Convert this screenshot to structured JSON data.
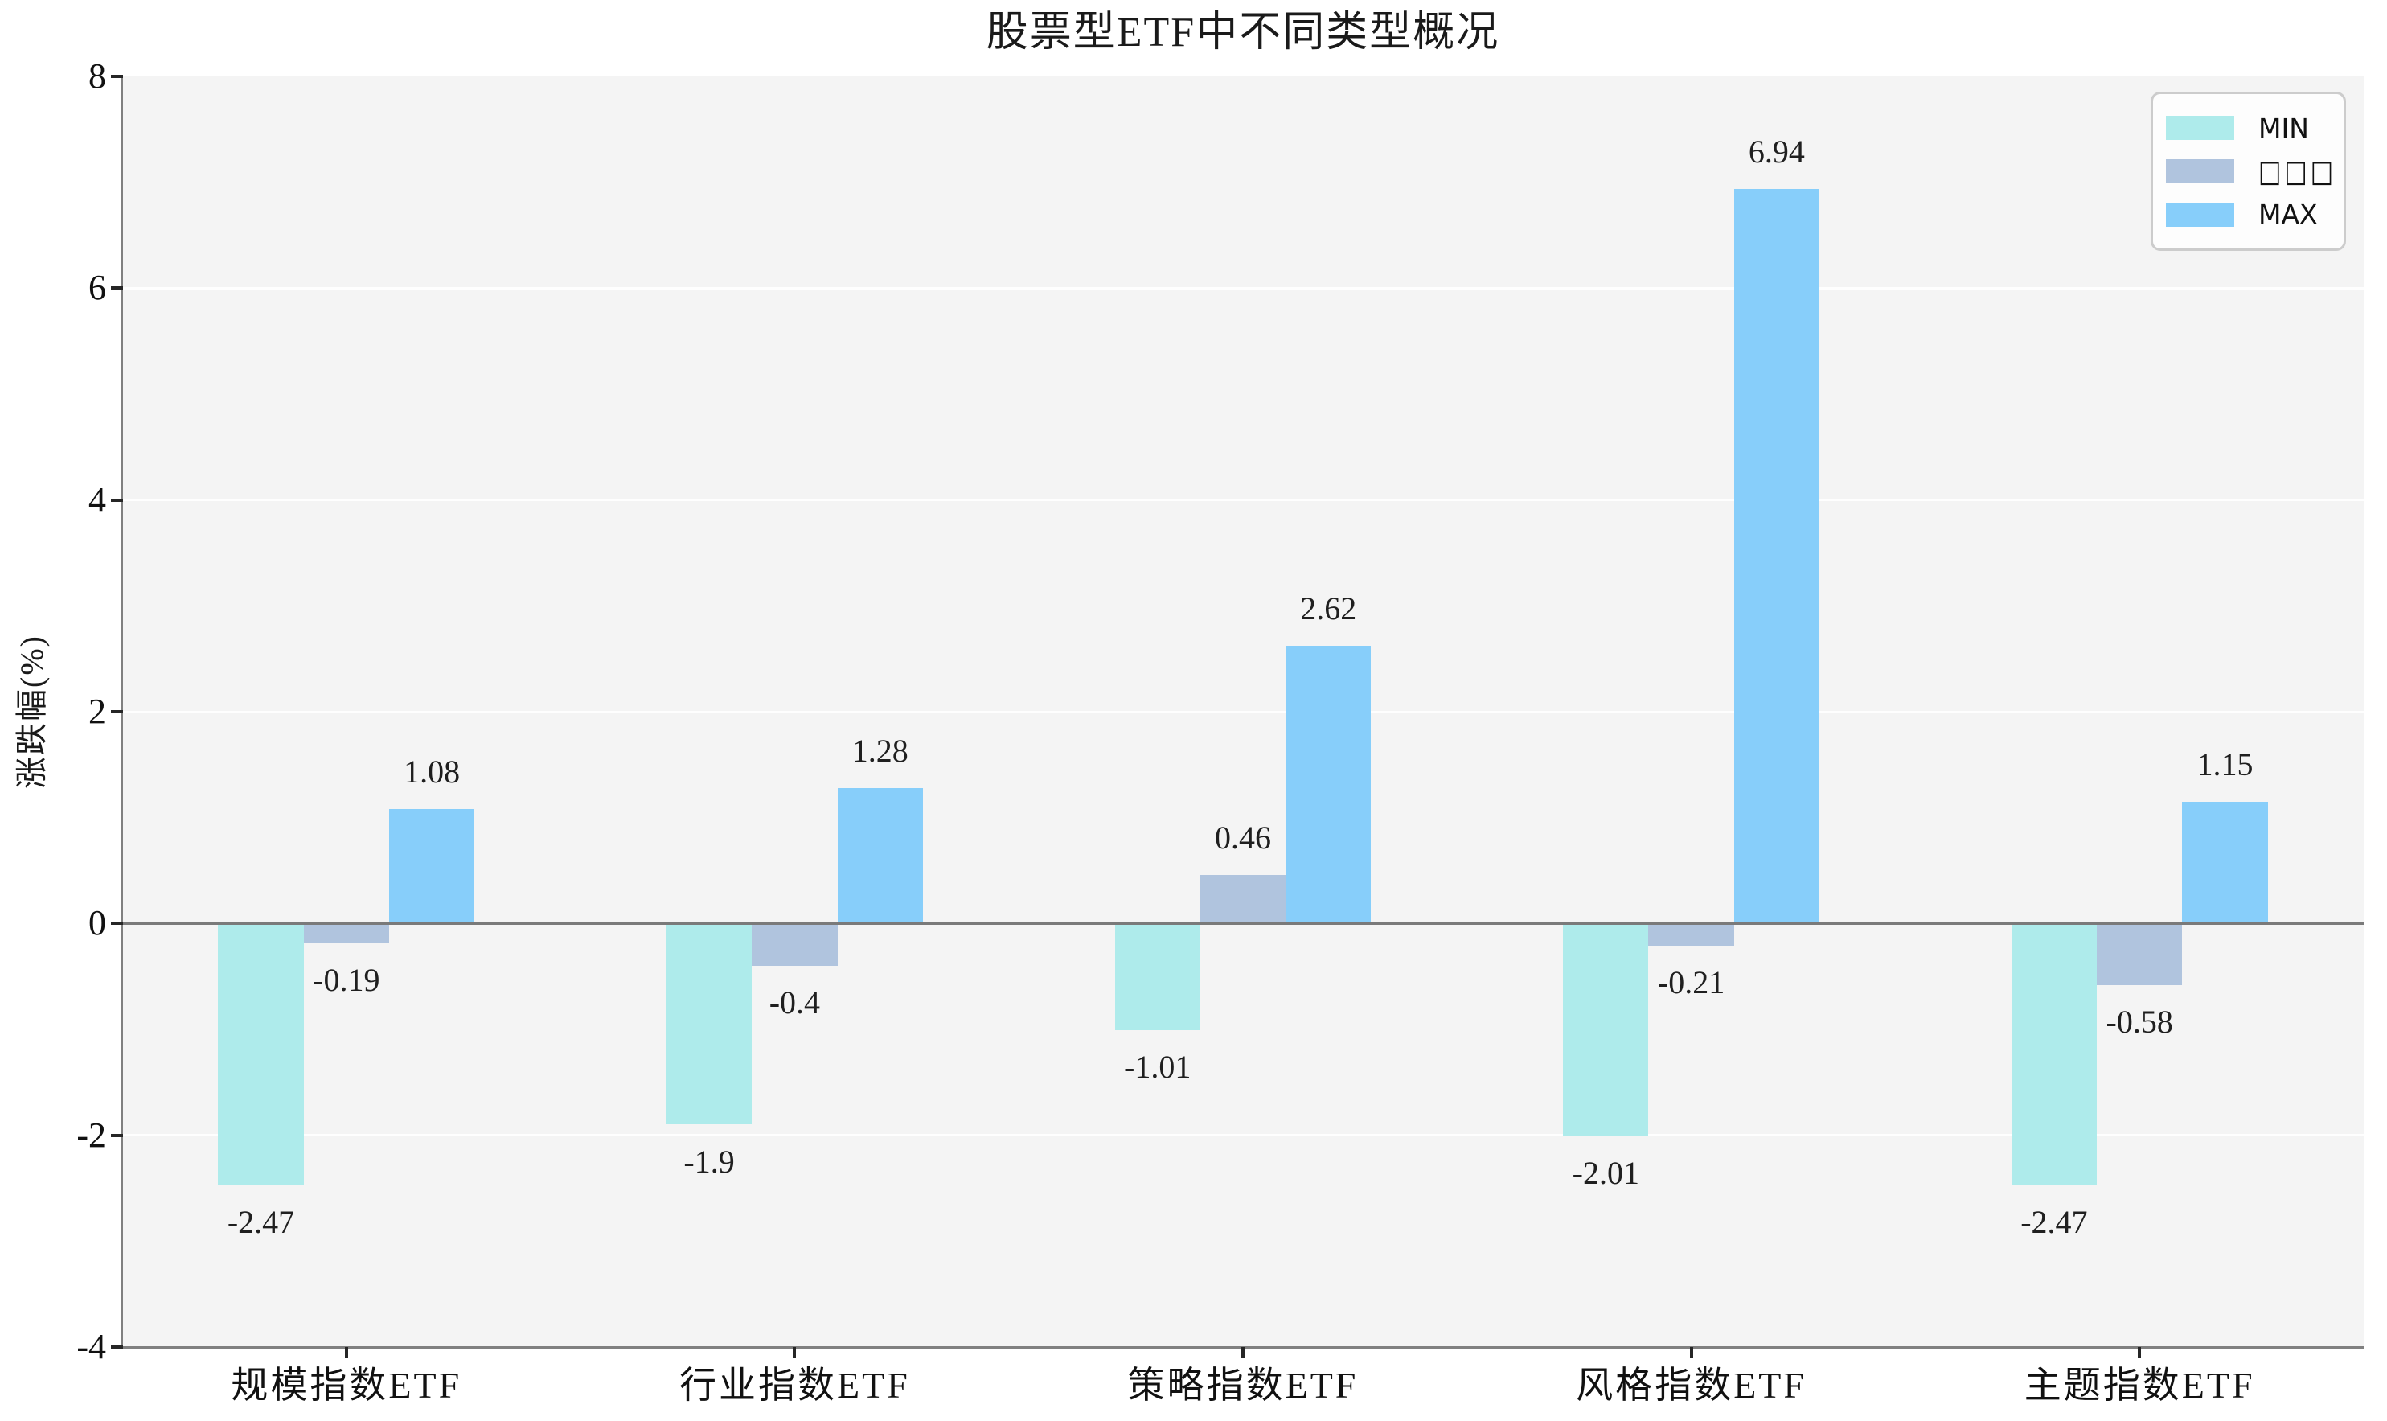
{
  "chart_data": {
    "type": "bar",
    "title": "股票型ETF中不同类型概况",
    "ylabel": "涨跌幅(%)",
    "xlabel": "",
    "categories": [
      "规模指数ETF",
      "行业指数ETF",
      "策略指数ETF",
      "风格指数ETF",
      "主题指数ETF"
    ],
    "series": [
      {
        "name": "MIN",
        "color": "#aeebeb",
        "values": [
          -2.47,
          -1.9,
          -1.01,
          -2.01,
          -2.47
        ],
        "labels": [
          "-2.47",
          "-1.9",
          "-1.01",
          "-2.01",
          "-2.47"
        ]
      },
      {
        "name": "□□□",
        "color": "#b0c4de",
        "values": [
          -0.19,
          -0.4,
          0.46,
          -0.21,
          -0.58
        ],
        "labels": [
          "-0.19",
          "-0.4",
          "0.46",
          "-0.21",
          "-0.58"
        ]
      },
      {
        "name": "MAX",
        "color": "#87cefa",
        "values": [
          1.08,
          1.28,
          2.62,
          6.94,
          1.15
        ],
        "labels": [
          "1.08",
          "1.28",
          "2.62",
          "6.94",
          "1.15"
        ]
      }
    ],
    "ylim": [
      -4,
      8
    ],
    "yticks": [
      8,
      6,
      4,
      2,
      0,
      -2,
      -4
    ],
    "grid": true,
    "legend_position": "upper right",
    "colors": {
      "plot_background": "#f4f4f4",
      "figure_background": "#ffffff",
      "gridline": "#ffffff",
      "zero_line": "#7a7a7a",
      "spine": "#808080",
      "tick": "#262626",
      "text": "#1a1a1a",
      "legend_border": "#cccccc"
    }
  }
}
